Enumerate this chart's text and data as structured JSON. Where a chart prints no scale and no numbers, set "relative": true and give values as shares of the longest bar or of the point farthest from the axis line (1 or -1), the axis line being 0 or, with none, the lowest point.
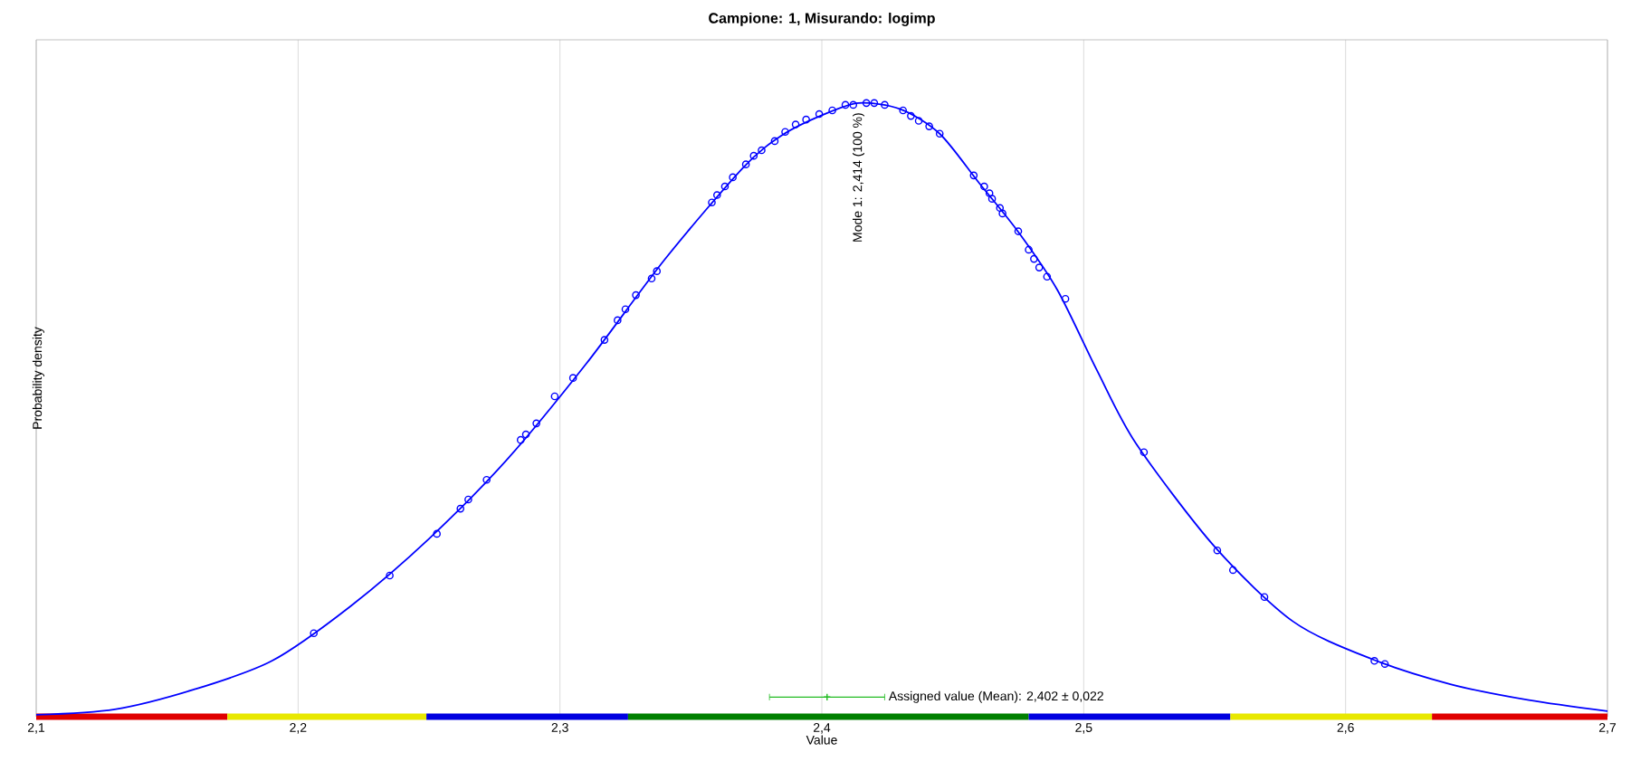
{
  "chart_data": {
    "type": "line",
    "title": "Campione: 1, Misurando: logimp",
    "xlabel": "Value",
    "ylabel": "Probability density",
    "relative": true,
    "grid": "x",
    "xlim": [
      2.1,
      2.7
    ],
    "xticks": [
      {
        "value": 2.1,
        "label": "2,1"
      },
      {
        "value": 2.2,
        "label": "2,2"
      },
      {
        "value": 2.3,
        "label": "2,3"
      },
      {
        "value": 2.4,
        "label": "2,4"
      },
      {
        "value": 2.5,
        "label": "2,5"
      },
      {
        "value": 2.6,
        "label": "2,6"
      },
      {
        "value": 2.7,
        "label": "2,7"
      }
    ],
    "annotations": [
      {
        "text": "Mode 1: 2,414  (100 %)",
        "x": 2.414,
        "y": 1.0
      }
    ],
    "series": [
      {
        "color": "#0000ff",
        "marker": "none",
        "x": [
          2.1,
          2.13,
          2.16,
          2.19,
          2.22,
          2.25,
          2.28,
          2.31,
          2.34,
          2.37,
          2.385,
          2.4,
          2.414,
          2.43,
          2.445,
          2.46,
          2.475,
          2.49,
          2.505,
          2.52,
          2.55,
          2.58,
          2.61,
          2.64,
          2.67,
          2.7
        ],
        "values": [
          0.003,
          0.012,
          0.044,
          0.091,
          0.18,
          0.29,
          0.42,
          0.575,
          0.745,
          0.895,
          0.948,
          0.98,
          1.0,
          0.99,
          0.95,
          0.87,
          0.79,
          0.695,
          0.565,
          0.445,
          0.277,
          0.155,
          0.094,
          0.053,
          0.027,
          0.009
        ]
      },
      {
        "type": "scatter",
        "color": "#0000ff",
        "marker": "circle",
        "x": [
          2.206,
          2.235,
          2.253,
          2.262,
          2.265,
          2.272,
          2.285,
          2.287,
          2.291,
          2.298,
          2.305,
          2.317,
          2.322,
          2.325,
          2.329,
          2.335,
          2.337,
          2.358,
          2.36,
          2.363,
          2.366,
          2.371,
          2.374,
          2.377,
          2.382,
          2.386,
          2.39,
          2.394,
          2.399,
          2.404,
          2.409,
          2.412,
          2.417,
          2.42,
          2.424,
          2.431,
          2.434,
          2.437,
          2.441,
          2.445,
          2.458,
          2.462,
          2.464,
          2.465,
          2.468,
          2.469,
          2.475,
          2.479,
          2.481,
          2.483,
          2.486,
          2.493,
          2.523,
          2.551,
          2.557,
          2.569,
          2.611,
          2.615
        ],
        "values": [
          0.136,
          0.23,
          0.298,
          0.339,
          0.354,
          0.386,
          0.451,
          0.46,
          0.478,
          0.522,
          0.552,
          0.614,
          0.646,
          0.664,
          0.687,
          0.714,
          0.726,
          0.838,
          0.85,
          0.864,
          0.879,
          0.9,
          0.914,
          0.923,
          0.938,
          0.953,
          0.965,
          0.973,
          0.982,
          0.988,
          0.997,
          0.997,
          1.0,
          1.0,
          0.997,
          0.988,
          0.979,
          0.971,
          0.962,
          0.95,
          0.882,
          0.864,
          0.853,
          0.844,
          0.829,
          0.82,
          0.791,
          0.761,
          0.746,
          0.732,
          0.717,
          0.681,
          0.431,
          0.271,
          0.239,
          0.195,
          0.091,
          0.086
        ]
      },
      {
        "type": "line",
        "color": "#e00000",
        "x": [
          2.1,
          2.173
        ],
        "values": [
          0,
          0
        ]
      },
      {
        "type": "line",
        "color": "#e8e800",
        "x": [
          2.173,
          2.249
        ],
        "values": [
          0,
          0
        ]
      },
      {
        "type": "line",
        "color": "#0000e0",
        "x": [
          2.249,
          2.326
        ],
        "values": [
          0,
          0
        ]
      },
      {
        "type": "line",
        "color": "#008000",
        "x": [
          2.326,
          2.479
        ],
        "values": [
          0,
          0
        ]
      },
      {
        "type": "line",
        "color": "#0000e0",
        "x": [
          2.479,
          2.556
        ],
        "values": [
          0,
          0
        ]
      },
      {
        "type": "line",
        "color": "#e8e800",
        "x": [
          2.556,
          2.633
        ],
        "values": [
          0,
          0
        ]
      },
      {
        "type": "line",
        "color": "#e00000",
        "x": [
          2.633,
          2.7
        ],
        "values": [
          0,
          0
        ]
      },
      {
        "type": "scatter",
        "name": "Assigned value (Mean): 2,402 ± 0,022",
        "color": "#22bb22",
        "marker": "cross",
        "x": [
          2.402
        ],
        "values": [
          0.032
        ],
        "xerrors": [
          0.022
        ]
      }
    ]
  }
}
